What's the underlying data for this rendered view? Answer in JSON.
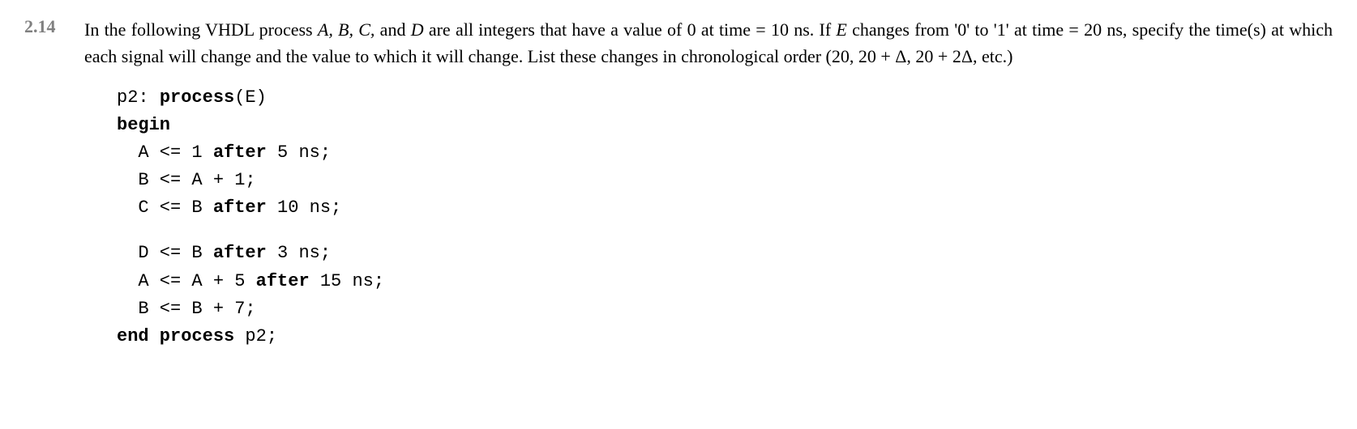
{
  "problem": {
    "number": "2.14",
    "text_parts": {
      "p1": "In the following VHDL process ",
      "vars": "A, B, C,",
      "p2": " and ",
      "varD": "D",
      "p3": " are all integers that have a value of 0 at time = 10 ns. If ",
      "varE": "E",
      "p4": " changes from '0' to '1' at time = 20 ns, specify the time(s) at which each signal will change and the value to which it will change. List these changes in chronological order (20, 20 + Δ, 20 + 2Δ, etc.)"
    }
  },
  "code": {
    "line1": {
      "pre": "p2: ",
      "kw": "process",
      "post": "(E)"
    },
    "line2": {
      "kw": "begin"
    },
    "line3": {
      "pre": "  A <= 1 ",
      "kw": "after",
      "post": " 5 ns;"
    },
    "line4": {
      "text": "  B <= A + 1;"
    },
    "line5": {
      "pre": "  C <= B ",
      "kw": "after",
      "post": " 10 ns;"
    },
    "line6": {
      "pre": "  D <= B ",
      "kw": "after",
      "post": " 3 ns;"
    },
    "line7": {
      "pre": "  A <= A + 5 ",
      "kw": "after",
      "post": " 15 ns;"
    },
    "line8": {
      "text": "  B <= B + 7;"
    },
    "line9": {
      "kw": "end process",
      "post": " p2;"
    }
  }
}
